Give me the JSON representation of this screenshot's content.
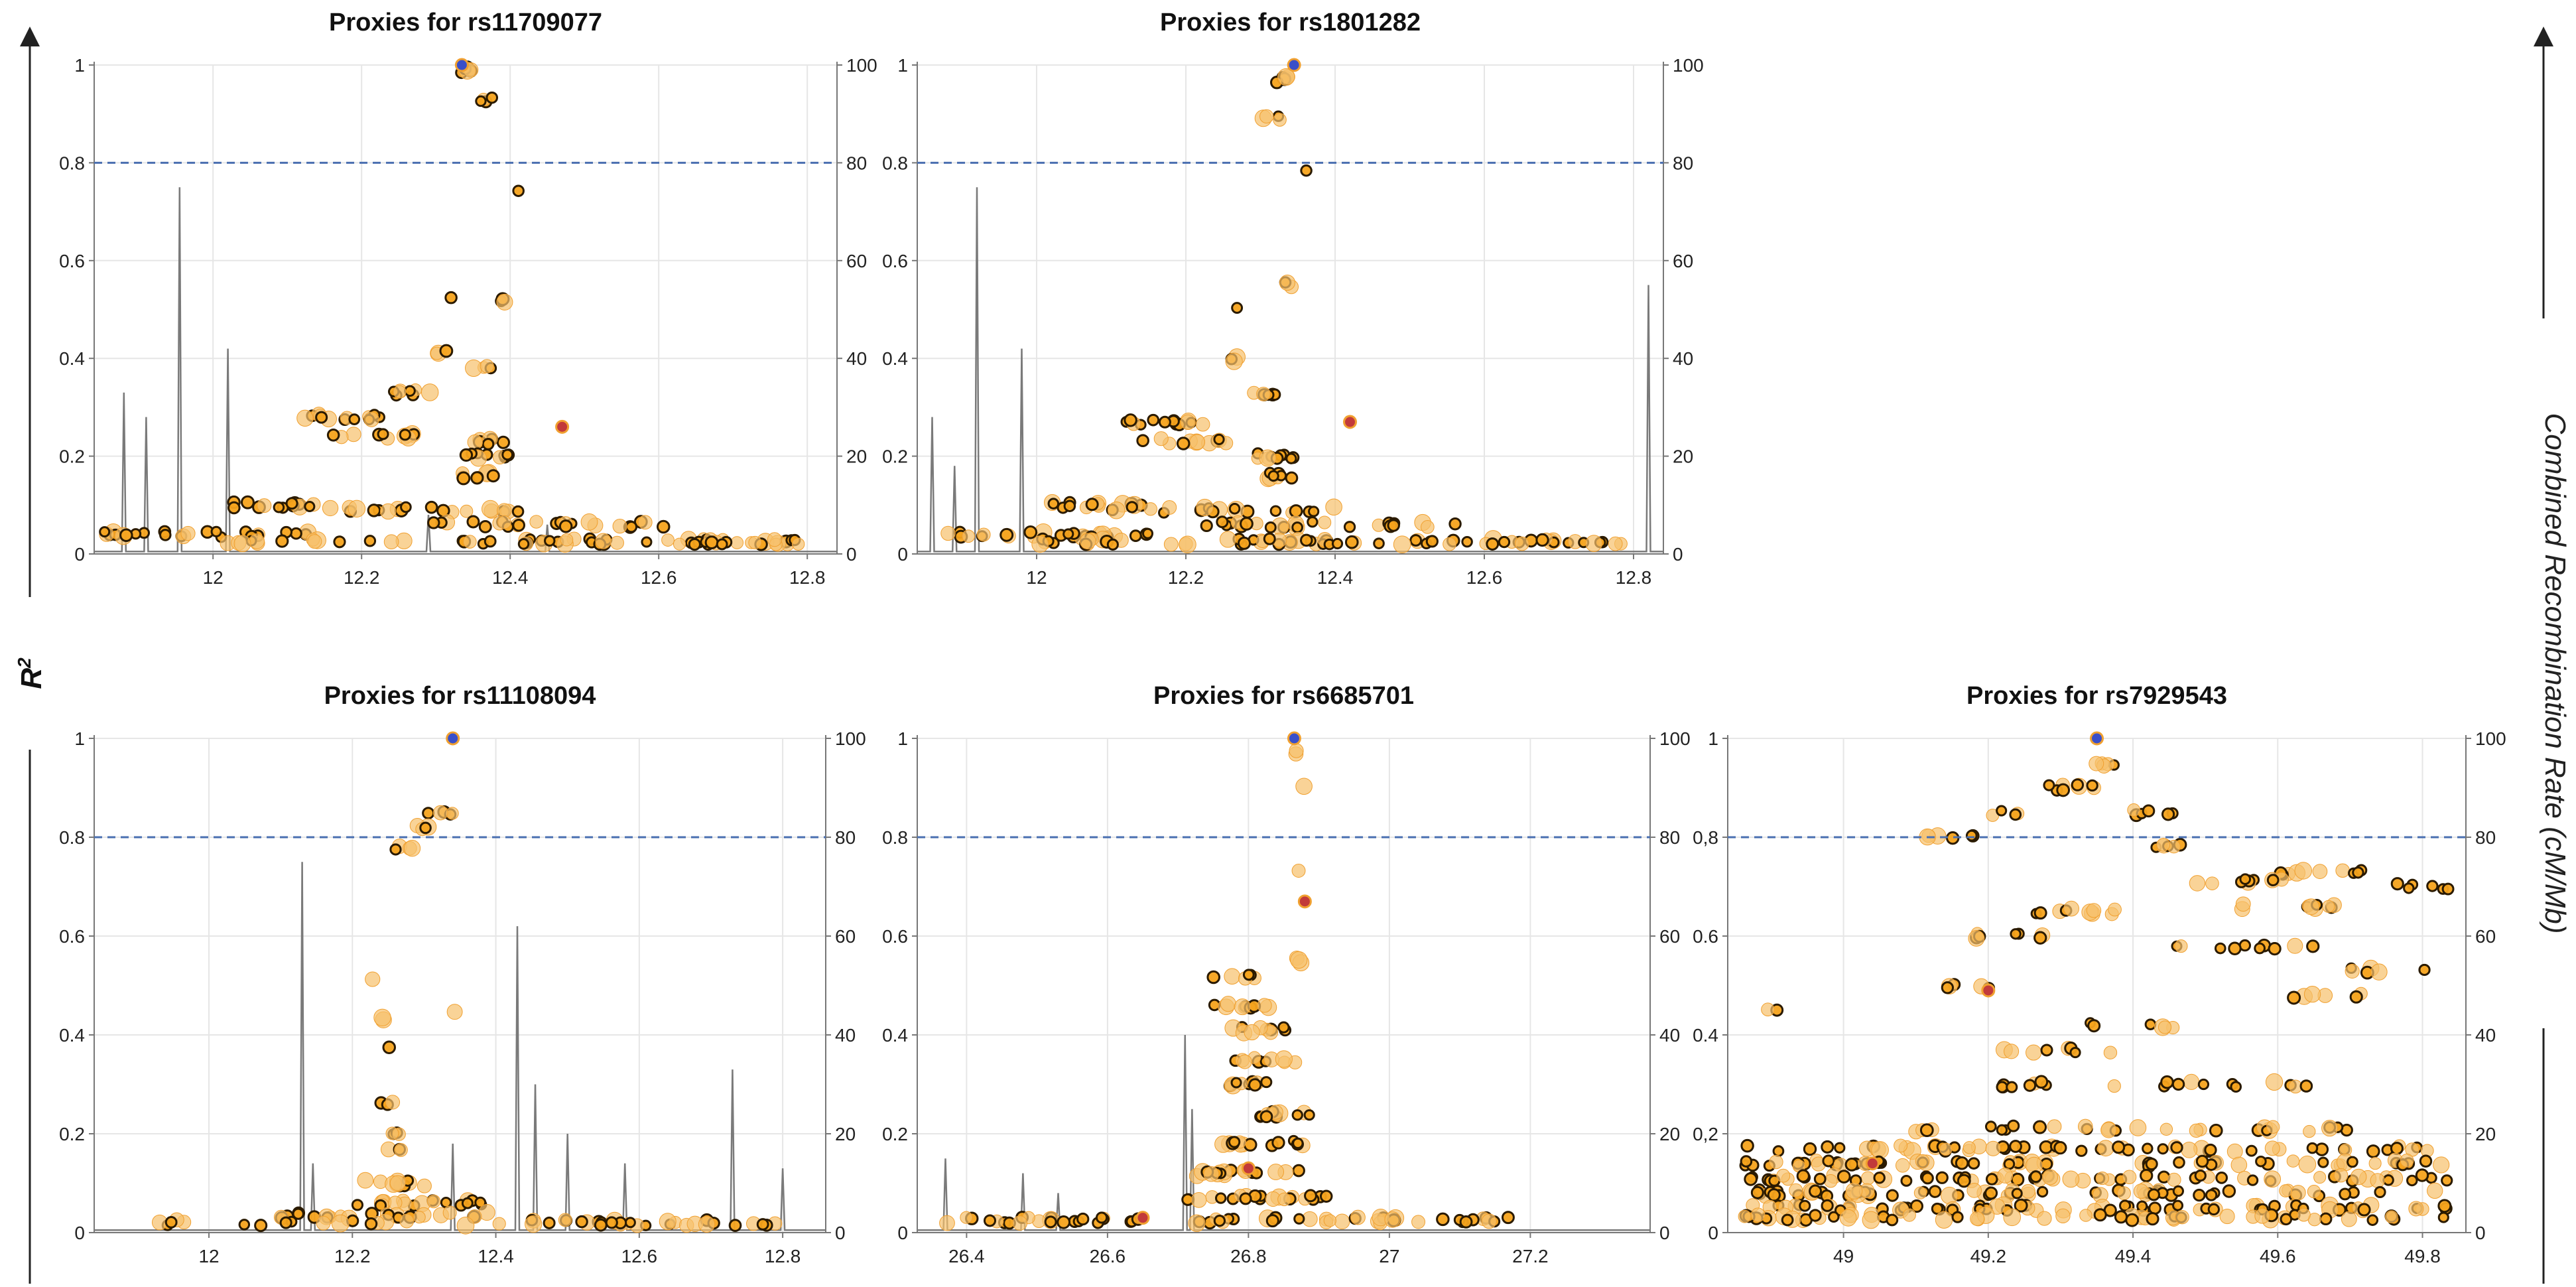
{
  "figure": {
    "left_axis_label": "R",
    "left_axis_superscript": "2",
    "right_axis_label": "Combined Recombination Rate (cM/Mb)"
  },
  "chart_data": [
    {
      "type": "scatter",
      "title": "Proxies for rs11709077",
      "xlim": [
        11.84,
        12.84
      ],
      "xticks": [
        12,
        12.2,
        12.4,
        12.6,
        12.8
      ],
      "xtick_labels": [
        "12",
        "12.2",
        "12.4",
        "12.6",
        "12.8"
      ],
      "ylim": [
        0,
        1
      ],
      "yticks": [
        0,
        0.2,
        0.4,
        0.6,
        0.8,
        1
      ],
      "ytick_labels": [
        "0",
        "0.2",
        "0.4",
        "0.6",
        "0.8",
        "1"
      ],
      "y2lim": [
        0,
        100
      ],
      "y2ticks": [
        0,
        20,
        40,
        60,
        80,
        100
      ],
      "y2tick_labels": [
        "0",
        "20",
        "40",
        "60",
        "80",
        "100"
      ],
      "threshold": 0.8,
      "lead_snp": {
        "x": 12.335,
        "y": 1.0
      },
      "highlight_snps": [
        {
          "x": 12.47,
          "y": 0.26
        }
      ],
      "recombination_peaks": [
        {
          "x": 11.88,
          "rate": 33
        },
        {
          "x": 11.91,
          "rate": 28
        },
        {
          "x": 11.955,
          "rate": 75
        },
        {
          "x": 12.02,
          "rate": 42
        },
        {
          "x": 12.29,
          "rate": 8
        },
        {
          "x": 12.45,
          "rate": 6
        }
      ],
      "snp_clusters": [
        {
          "x": 12.34,
          "y": 0.99,
          "w": 0.02,
          "n": 6
        },
        {
          "x": 12.37,
          "y": 0.93,
          "w": 0.03,
          "n": 4
        },
        {
          "x": 12.41,
          "y": 0.74,
          "w": 0.005,
          "n": 1
        },
        {
          "x": 12.395,
          "y": 0.52,
          "w": 0.015,
          "n": 3
        },
        {
          "x": 12.32,
          "y": 0.53,
          "w": 0.005,
          "n": 1
        },
        {
          "x": 12.31,
          "y": 0.41,
          "w": 0.02,
          "n": 3
        },
        {
          "x": 12.36,
          "y": 0.38,
          "w": 0.03,
          "n": 4
        },
        {
          "x": 12.27,
          "y": 0.33,
          "w": 0.06,
          "n": 8
        },
        {
          "x": 12.19,
          "y": 0.28,
          "w": 0.14,
          "n": 14
        },
        {
          "x": 12.22,
          "y": 0.24,
          "w": 0.12,
          "n": 12
        },
        {
          "x": 12.37,
          "y": 0.23,
          "w": 0.05,
          "n": 8
        },
        {
          "x": 12.37,
          "y": 0.2,
          "w": 0.06,
          "n": 10
        },
        {
          "x": 12.36,
          "y": 0.16,
          "w": 0.05,
          "n": 8
        },
        {
          "x": 12.08,
          "y": 0.1,
          "w": 0.12,
          "n": 14
        },
        {
          "x": 12.3,
          "y": 0.09,
          "w": 0.3,
          "n": 20
        },
        {
          "x": 12.45,
          "y": 0.06,
          "w": 0.35,
          "n": 25
        },
        {
          "x": 12.0,
          "y": 0.04,
          "w": 0.3,
          "n": 25
        },
        {
          "x": 12.4,
          "y": 0.025,
          "w": 0.8,
          "n": 70
        }
      ]
    },
    {
      "type": "scatter",
      "title": "Proxies for rs1801282",
      "xlim": [
        11.84,
        12.84
      ],
      "xticks": [
        12,
        12.2,
        12.4,
        12.6,
        12.8
      ],
      "xtick_labels": [
        "12",
        "12.2",
        "12.4",
        "12.6",
        "12.8"
      ],
      "ylim": [
        0,
        1
      ],
      "yticks": [
        0,
        0.2,
        0.4,
        0.6,
        0.8,
        1
      ],
      "ytick_labels": [
        "0",
        "0.2",
        "0.4",
        "0.6",
        "0.8",
        "1"
      ],
      "y2lim": [
        0,
        100
      ],
      "y2ticks": [
        0,
        20,
        40,
        60,
        80,
        100
      ],
      "y2tick_labels": [
        "0",
        "20",
        "40",
        "60",
        "80",
        "100"
      ],
      "threshold": 0.8,
      "lead_snp": {
        "x": 12.345,
        "y": 1.0
      },
      "highlight_snps": [
        {
          "x": 12.42,
          "y": 0.27
        }
      ],
      "recombination_peaks": [
        {
          "x": 11.86,
          "rate": 28
        },
        {
          "x": 11.89,
          "rate": 18
        },
        {
          "x": 11.92,
          "rate": 75
        },
        {
          "x": 11.98,
          "rate": 42
        },
        {
          "x": 12.82,
          "rate": 55
        }
      ],
      "snp_clusters": [
        {
          "x": 12.33,
          "y": 0.97,
          "w": 0.03,
          "n": 6
        },
        {
          "x": 12.315,
          "y": 0.89,
          "w": 0.03,
          "n": 4
        },
        {
          "x": 12.36,
          "y": 0.79,
          "w": 0.005,
          "n": 1
        },
        {
          "x": 12.34,
          "y": 0.55,
          "w": 0.015,
          "n": 3
        },
        {
          "x": 12.27,
          "y": 0.5,
          "w": 0.005,
          "n": 1
        },
        {
          "x": 12.26,
          "y": 0.4,
          "w": 0.02,
          "n": 3
        },
        {
          "x": 12.3,
          "y": 0.33,
          "w": 0.05,
          "n": 6
        },
        {
          "x": 12.17,
          "y": 0.27,
          "w": 0.12,
          "n": 14
        },
        {
          "x": 12.2,
          "y": 0.23,
          "w": 0.12,
          "n": 12
        },
        {
          "x": 12.32,
          "y": 0.2,
          "w": 0.05,
          "n": 10
        },
        {
          "x": 12.32,
          "y": 0.16,
          "w": 0.05,
          "n": 8
        },
        {
          "x": 12.08,
          "y": 0.1,
          "w": 0.14,
          "n": 14
        },
        {
          "x": 12.25,
          "y": 0.09,
          "w": 0.3,
          "n": 20
        },
        {
          "x": 12.4,
          "y": 0.06,
          "w": 0.35,
          "n": 25
        },
        {
          "x": 12.0,
          "y": 0.04,
          "w": 0.3,
          "n": 25
        },
        {
          "x": 12.4,
          "y": 0.025,
          "w": 0.8,
          "n": 70
        }
      ]
    },
    {
      "type": "scatter",
      "title": "Proxies for rs11108094",
      "xlim": [
        11.84,
        12.86
      ],
      "xticks": [
        12,
        12.2,
        12.4,
        12.6,
        12.8
      ],
      "xtick_labels": [
        "12",
        "12.2",
        "12.4",
        "12.6",
        "12.8"
      ],
      "ylim": [
        0,
        1
      ],
      "yticks": [
        0,
        0.2,
        0.4,
        0.6,
        0.8,
        1
      ],
      "ytick_labels": [
        "0",
        "0.2",
        "0.4",
        "0.6",
        "0.8",
        "1"
      ],
      "y2lim": [
        0,
        100
      ],
      "y2ticks": [
        0,
        20,
        40,
        60,
        80,
        100
      ],
      "y2tick_labels": [
        "0",
        "20",
        "40",
        "60",
        "80",
        "100"
      ],
      "threshold": 0.8,
      "lead_snp": {
        "x": 12.34,
        "y": 1.0
      },
      "highlight_snps": [],
      "recombination_peaks": [
        {
          "x": 12.13,
          "rate": 75
        },
        {
          "x": 12.145,
          "rate": 14
        },
        {
          "x": 12.34,
          "rate": 18
        },
        {
          "x": 12.43,
          "rate": 62
        },
        {
          "x": 12.455,
          "rate": 30
        },
        {
          "x": 12.5,
          "rate": 20
        },
        {
          "x": 12.58,
          "rate": 14
        },
        {
          "x": 12.73,
          "rate": 33
        },
        {
          "x": 12.8,
          "rate": 13
        }
      ],
      "snp_clusters": [
        {
          "x": 12.32,
          "y": 0.85,
          "w": 0.04,
          "n": 5
        },
        {
          "x": 12.3,
          "y": 0.82,
          "w": 0.03,
          "n": 4
        },
        {
          "x": 12.27,
          "y": 0.78,
          "w": 0.03,
          "n": 4
        },
        {
          "x": 12.23,
          "y": 0.51,
          "w": 0.005,
          "n": 1
        },
        {
          "x": 12.24,
          "y": 0.43,
          "w": 0.01,
          "n": 2
        },
        {
          "x": 12.345,
          "y": 0.45,
          "w": 0.005,
          "n": 1
        },
        {
          "x": 12.25,
          "y": 0.38,
          "w": 0.005,
          "n": 1
        },
        {
          "x": 12.25,
          "y": 0.26,
          "w": 0.02,
          "n": 3
        },
        {
          "x": 12.26,
          "y": 0.2,
          "w": 0.03,
          "n": 4
        },
        {
          "x": 12.26,
          "y": 0.17,
          "w": 0.03,
          "n": 3
        },
        {
          "x": 12.26,
          "y": 0.1,
          "w": 0.1,
          "n": 12
        },
        {
          "x": 12.3,
          "y": 0.06,
          "w": 0.2,
          "n": 20
        },
        {
          "x": 12.25,
          "y": 0.035,
          "w": 0.3,
          "n": 25
        },
        {
          "x": 12.35,
          "y": 0.02,
          "w": 0.9,
          "n": 50
        }
      ]
    },
    {
      "type": "scatter",
      "title": "Proxies for rs6685701",
      "xlim": [
        26.33,
        27.37
      ],
      "xticks": [
        26.4,
        26.6,
        26.8,
        27,
        27.2
      ],
      "xtick_labels": [
        "26.4",
        "26.6",
        "26.8",
        "27",
        "27.2"
      ],
      "ylim": [
        0,
        1
      ],
      "yticks": [
        0,
        0.2,
        0.4,
        0.6,
        0.8,
        1
      ],
      "ytick_labels": [
        "0",
        "0.2",
        "0.4",
        "0.6",
        "0.8",
        "1"
      ],
      "y2lim": [
        0,
        100
      ],
      "y2ticks": [
        0,
        20,
        40,
        60,
        80,
        100
      ],
      "y2tick_labels": [
        "0",
        "20",
        "40",
        "60",
        "80",
        "100"
      ],
      "threshold": 0.8,
      "lead_snp": {
        "x": 26.865,
        "y": 1.0
      },
      "highlight_snps": [
        {
          "x": 26.88,
          "y": 0.67
        },
        {
          "x": 26.8,
          "y": 0.13
        },
        {
          "x": 26.65,
          "y": 0.03
        }
      ],
      "recombination_peaks": [
        {
          "x": 26.37,
          "rate": 15
        },
        {
          "x": 26.48,
          "rate": 12
        },
        {
          "x": 26.53,
          "rate": 8
        },
        {
          "x": 26.71,
          "rate": 40
        },
        {
          "x": 26.72,
          "rate": 25
        }
      ],
      "snp_clusters": [
        {
          "x": 26.865,
          "y": 0.97,
          "w": 0.01,
          "n": 2
        },
        {
          "x": 26.88,
          "y": 0.9,
          "w": 0.005,
          "n": 1
        },
        {
          "x": 26.87,
          "y": 0.73,
          "w": 0.005,
          "n": 1
        },
        {
          "x": 26.87,
          "y": 0.55,
          "w": 0.02,
          "n": 3
        },
        {
          "x": 26.78,
          "y": 0.52,
          "w": 0.06,
          "n": 6
        },
        {
          "x": 26.8,
          "y": 0.46,
          "w": 0.1,
          "n": 10
        },
        {
          "x": 26.8,
          "y": 0.41,
          "w": 0.12,
          "n": 10
        },
        {
          "x": 26.82,
          "y": 0.35,
          "w": 0.1,
          "n": 10
        },
        {
          "x": 26.82,
          "y": 0.3,
          "w": 0.1,
          "n": 10
        },
        {
          "x": 26.85,
          "y": 0.24,
          "w": 0.08,
          "n": 12
        },
        {
          "x": 26.82,
          "y": 0.18,
          "w": 0.12,
          "n": 14
        },
        {
          "x": 26.8,
          "y": 0.12,
          "w": 0.16,
          "n": 18
        },
        {
          "x": 26.82,
          "y": 0.07,
          "w": 0.22,
          "n": 22
        },
        {
          "x": 26.5,
          "y": 0.025,
          "w": 0.3,
          "n": 25
        },
        {
          "x": 26.95,
          "y": 0.025,
          "w": 0.45,
          "n": 40
        }
      ]
    },
    {
      "type": "scatter",
      "title": "Proxies for rs7929543",
      "xlim": [
        48.84,
        49.86
      ],
      "xticks": [
        49,
        49.2,
        49.4,
        49.6,
        49.8
      ],
      "xtick_labels": [
        "49",
        "49.2",
        "49.4",
        "49.6",
        "49.8"
      ],
      "ylim": [
        0,
        1
      ],
      "yticks": [
        0,
        0.2,
        0.4,
        0.6,
        0.8,
        1
      ],
      "ytick_labels": [
        "0",
        "0,2",
        "0.4",
        "0.6",
        "0,8",
        "1"
      ],
      "y2lim": [
        0,
        100
      ],
      "y2ticks": [
        0,
        20,
        40,
        60,
        80,
        100
      ],
      "y2tick_labels": [
        "0",
        "20",
        "40",
        "60",
        "80",
        "100"
      ],
      "threshold": 0.8,
      "lead_snp": {
        "x": 49.35,
        "y": 1.0
      },
      "highlight_snps": [
        {
          "x": 49.2,
          "y": 0.49
        },
        {
          "x": 49.04,
          "y": 0.14
        }
      ],
      "recombination_peaks": [],
      "snp_clusters": [
        {
          "x": 49.36,
          "y": 0.95,
          "w": 0.05,
          "n": 5
        },
        {
          "x": 49.3,
          "y": 0.9,
          "w": 0.1,
          "n": 8
        },
        {
          "x": 49.43,
          "y": 0.85,
          "w": 0.06,
          "n": 6
        },
        {
          "x": 49.23,
          "y": 0.85,
          "w": 0.05,
          "n": 4
        },
        {
          "x": 49.15,
          "y": 0.8,
          "w": 0.08,
          "n": 6
        },
        {
          "x": 49.45,
          "y": 0.78,
          "w": 0.06,
          "n": 6
        },
        {
          "x": 49.65,
          "y": 0.73,
          "w": 0.14,
          "n": 10
        },
        {
          "x": 49.55,
          "y": 0.71,
          "w": 0.14,
          "n": 10
        },
        {
          "x": 49.8,
          "y": 0.7,
          "w": 0.1,
          "n": 6
        },
        {
          "x": 49.6,
          "y": 0.66,
          "w": 0.16,
          "n": 10
        },
        {
          "x": 49.3,
          "y": 0.65,
          "w": 0.16,
          "n": 10
        },
        {
          "x": 49.25,
          "y": 0.6,
          "w": 0.14,
          "n": 8
        },
        {
          "x": 49.55,
          "y": 0.58,
          "w": 0.2,
          "n": 10
        },
        {
          "x": 49.75,
          "y": 0.53,
          "w": 0.12,
          "n": 6
        },
        {
          "x": 49.18,
          "y": 0.5,
          "w": 0.08,
          "n": 5
        },
        {
          "x": 49.65,
          "y": 0.48,
          "w": 0.14,
          "n": 6
        },
        {
          "x": 49.4,
          "y": 0.42,
          "w": 0.12,
          "n": 6
        },
        {
          "x": 48.9,
          "y": 0.45,
          "w": 0.02,
          "n": 2
        },
        {
          "x": 49.3,
          "y": 0.37,
          "w": 0.2,
          "n": 8
        },
        {
          "x": 49.25,
          "y": 0.3,
          "w": 0.08,
          "n": 8
        },
        {
          "x": 49.5,
          "y": 0.3,
          "w": 0.3,
          "n": 12
        },
        {
          "x": 49.4,
          "y": 0.21,
          "w": 0.6,
          "n": 30
        },
        {
          "x": 49.35,
          "y": 0.17,
          "w": 0.98,
          "n": 60
        },
        {
          "x": 49.35,
          "y": 0.14,
          "w": 0.98,
          "n": 70
        },
        {
          "x": 49.35,
          "y": 0.11,
          "w": 0.98,
          "n": 70
        },
        {
          "x": 49.35,
          "y": 0.08,
          "w": 0.98,
          "n": 70
        },
        {
          "x": 49.35,
          "y": 0.05,
          "w": 0.98,
          "n": 70
        },
        {
          "x": 49.35,
          "y": 0.03,
          "w": 0.98,
          "n": 60
        }
      ]
    }
  ]
}
